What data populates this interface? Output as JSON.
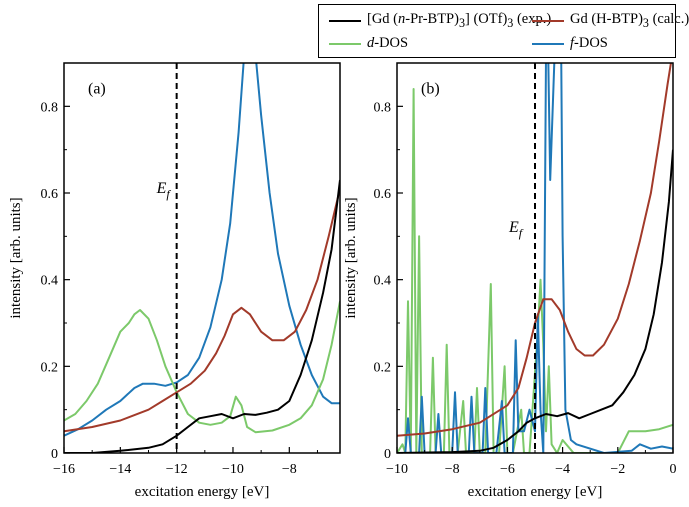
{
  "colors": {
    "exp": "#000000",
    "calc": "#a23a2a",
    "d_dos": "#7cc96a",
    "f_dos": "#1f78b8",
    "ef_line": "#000000"
  },
  "legend": {
    "items": [
      {
        "id": "exp",
        "label_html": "[Gd (<i>n</i>-Pr-BTP)<sub>3</sub>] (OTf)<sub>3</sub> (exp.)"
      },
      {
        "id": "calc",
        "label_html": "Gd (H-BTP)<sub>3</sub> (calc.)"
      },
      {
        "id": "d_dos",
        "label_html": "<i>d</i>-DOS"
      },
      {
        "id": "f_dos",
        "label_html": "<i>f</i>-DOS"
      }
    ]
  },
  "chart_data": [
    {
      "type": "line",
      "panel_label": "(a)",
      "xlabel": "excitation energy [eV]",
      "ylabel": "intensity [arb. units]",
      "xlim": [
        -16,
        -6.2
      ],
      "ylim": [
        0,
        0.9
      ],
      "xticks": [
        -16,
        -14,
        -12,
        -10,
        -8
      ],
      "yticks": [
        0,
        0.2,
        0.4,
        0.6,
        0.8
      ],
      "ef_x": -12,
      "ef_label": "E",
      "ef_sub": "f",
      "series": [
        {
          "id": "f_dos",
          "points": [
            [
              -16,
              0.04
            ],
            [
              -15.5,
              0.055
            ],
            [
              -15,
              0.075
            ],
            [
              -14.5,
              0.1
            ],
            [
              -14,
              0.12
            ],
            [
              -13.5,
              0.15
            ],
            [
              -13.2,
              0.16
            ],
            [
              -12.8,
              0.16
            ],
            [
              -12.4,
              0.155
            ],
            [
              -12,
              0.163
            ],
            [
              -11.6,
              0.18
            ],
            [
              -11.2,
              0.22
            ],
            [
              -10.8,
              0.29
            ],
            [
              -10.4,
              0.4
            ],
            [
              -10.1,
              0.53
            ],
            [
              -9.8,
              0.74
            ],
            [
              -9.6,
              0.92
            ],
            [
              -9.2,
              0.92
            ],
            [
              -9,
              0.78
            ],
            [
              -8.7,
              0.6
            ],
            [
              -8.4,
              0.46
            ],
            [
              -8,
              0.34
            ],
            [
              -7.6,
              0.25
            ],
            [
              -7.2,
              0.18
            ],
            [
              -6.8,
              0.13
            ],
            [
              -6.5,
              0.115
            ],
            [
              -6.2,
              0.115
            ]
          ]
        },
        {
          "id": "d_dos",
          "points": [
            [
              -16,
              0.075
            ],
            [
              -15.6,
              0.09
            ],
            [
              -15.2,
              0.12
            ],
            [
              -14.8,
              0.16
            ],
            [
              -14.4,
              0.22
            ],
            [
              -14,
              0.28
            ],
            [
              -13.7,
              0.3
            ],
            [
              -13.5,
              0.32
            ],
            [
              -13.3,
              0.33
            ],
            [
              -13,
              0.31
            ],
            [
              -12.7,
              0.26
            ],
            [
              -12.4,
              0.2
            ],
            [
              -12,
              0.14
            ],
            [
              -11.6,
              0.09
            ],
            [
              -11.2,
              0.07
            ],
            [
              -10.8,
              0.065
            ],
            [
              -10.4,
              0.07
            ],
            [
              -10.1,
              0.085
            ],
            [
              -9.9,
              0.13
            ],
            [
              -9.7,
              0.11
            ],
            [
              -9.5,
              0.06
            ],
            [
              -9.2,
              0.048
            ],
            [
              -8.6,
              0.052
            ],
            [
              -8,
              0.065
            ],
            [
              -7.6,
              0.08
            ],
            [
              -7.2,
              0.11
            ],
            [
              -6.8,
              0.17
            ],
            [
              -6.5,
              0.25
            ],
            [
              -6.2,
              0.35
            ]
          ]
        },
        {
          "id": "calc",
          "points": [
            [
              -16,
              0.05
            ],
            [
              -15,
              0.06
            ],
            [
              -14,
              0.075
            ],
            [
              -13,
              0.1
            ],
            [
              -12.5,
              0.12
            ],
            [
              -12,
              0.14
            ],
            [
              -11.5,
              0.16
            ],
            [
              -11,
              0.19
            ],
            [
              -10.6,
              0.23
            ],
            [
              -10.3,
              0.27
            ],
            [
              -10,
              0.32
            ],
            [
              -9.7,
              0.335
            ],
            [
              -9.4,
              0.32
            ],
            [
              -9,
              0.28
            ],
            [
              -8.6,
              0.26
            ],
            [
              -8.2,
              0.26
            ],
            [
              -7.8,
              0.28
            ],
            [
              -7.4,
              0.33
            ],
            [
              -7,
              0.4
            ],
            [
              -6.6,
              0.5
            ],
            [
              -6.2,
              0.61
            ]
          ]
        },
        {
          "id": "exp",
          "points": [
            [
              -16,
              0.0
            ],
            [
              -15,
              0.0
            ],
            [
              -14,
              0.005
            ],
            [
              -13,
              0.012
            ],
            [
              -12.5,
              0.02
            ],
            [
              -12,
              0.04
            ],
            [
              -11.6,
              0.06
            ],
            [
              -11.2,
              0.08
            ],
            [
              -10.8,
              0.085
            ],
            [
              -10.4,
              0.09
            ],
            [
              -10,
              0.08
            ],
            [
              -9.6,
              0.09
            ],
            [
              -9.2,
              0.088
            ],
            [
              -8.8,
              0.093
            ],
            [
              -8.4,
              0.1
            ],
            [
              -8,
              0.12
            ],
            [
              -7.6,
              0.18
            ],
            [
              -7.2,
              0.26
            ],
            [
              -6.8,
              0.37
            ],
            [
              -6.5,
              0.47
            ],
            [
              -6.2,
              0.63
            ]
          ]
        }
      ]
    },
    {
      "type": "line",
      "panel_label": "(b)",
      "xlabel": "excitation energy [eV]",
      "ylabel": "intensity [arb. units]",
      "xlim": [
        -10,
        0
      ],
      "ylim": [
        0,
        0.9
      ],
      "xticks": [
        -10,
        -8,
        -6,
        -4,
        -2,
        0
      ],
      "yticks": [
        0,
        0.2,
        0.4,
        0.6,
        0.8
      ],
      "ef_x": -5,
      "ef_label": "E",
      "ef_sub": "f",
      "series": [
        {
          "id": "d_dos",
          "points": [
            [
              -10,
              0.0
            ],
            [
              -9.8,
              0.02
            ],
            [
              -9.7,
              0.0
            ],
            [
              -9.6,
              0.35
            ],
            [
              -9.5,
              0.0
            ],
            [
              -9.4,
              0.84
            ],
            [
              -9.3,
              0.0
            ],
            [
              -9.2,
              0.5
            ],
            [
              -9.1,
              0.0
            ],
            [
              -8.8,
              0.0
            ],
            [
              -8.7,
              0.22
            ],
            [
              -8.6,
              0.0
            ],
            [
              -8.3,
              0.0
            ],
            [
              -8.2,
              0.25
            ],
            [
              -8.1,
              0.0
            ],
            [
              -7.8,
              0.0
            ],
            [
              -7.6,
              0.12
            ],
            [
              -7.5,
              0.0
            ],
            [
              -7.2,
              0.0
            ],
            [
              -7.1,
              0.15
            ],
            [
              -7,
              0.0
            ],
            [
              -6.8,
              0.0
            ],
            [
              -6.6,
              0.39
            ],
            [
              -6.5,
              0.0
            ],
            [
              -6.3,
              0.0
            ],
            [
              -6.1,
              0.2
            ],
            [
              -6,
              0.0
            ],
            [
              -5.8,
              0.0
            ],
            [
              -5.5,
              0.1
            ],
            [
              -5.4,
              0.0
            ],
            [
              -5.2,
              0.0
            ],
            [
              -4.9,
              0.28
            ],
            [
              -4.8,
              0.4
            ],
            [
              -4.7,
              0.25
            ],
            [
              -4.6,
              0.05
            ],
            [
              -4.5,
              0.2
            ],
            [
              -4.4,
              0.02
            ],
            [
              -4.2,
              0.0
            ],
            [
              -4,
              0.03
            ],
            [
              -3.6,
              0.0
            ],
            [
              -2,
              0.0
            ],
            [
              -1.6,
              0.05
            ],
            [
              -1,
              0.05
            ],
            [
              -0.5,
              0.055
            ],
            [
              0,
              0.065
            ]
          ]
        },
        {
          "id": "f_dos",
          "points": [
            [
              -10,
              0.0
            ],
            [
              -9.7,
              0.0
            ],
            [
              -9.6,
              0.08
            ],
            [
              -9.5,
              0.0
            ],
            [
              -9.2,
              0.0
            ],
            [
              -9.1,
              0.13
            ],
            [
              -9,
              0.0
            ],
            [
              -8.6,
              0.0
            ],
            [
              -8.5,
              0.09
            ],
            [
              -8.4,
              0.0
            ],
            [
              -8,
              0.0
            ],
            [
              -7.9,
              0.14
            ],
            [
              -7.8,
              0.0
            ],
            [
              -7.4,
              0.0
            ],
            [
              -7.3,
              0.13
            ],
            [
              -7.2,
              0.0
            ],
            [
              -6.9,
              0.0
            ],
            [
              -6.8,
              0.15
            ],
            [
              -6.7,
              0.0
            ],
            [
              -6.4,
              0.0
            ],
            [
              -6.2,
              0.12
            ],
            [
              -6.1,
              0.0
            ],
            [
              -5.8,
              0.0
            ],
            [
              -5.7,
              0.26
            ],
            [
              -5.6,
              0.05
            ],
            [
              -5.4,
              0.05
            ],
            [
              -5.2,
              0.1
            ],
            [
              -5,
              0.05
            ],
            [
              -4.9,
              0.32
            ],
            [
              -4.8,
              0.1
            ],
            [
              -4.7,
              0.0
            ],
            [
              -4.6,
              0.92
            ],
            [
              -4.52,
              0.92
            ],
            [
              -4.45,
              0.63
            ],
            [
              -4.3,
              0.9
            ],
            [
              -4.2,
              0.92
            ],
            [
              -4.05,
              0.92
            ],
            [
              -4,
              0.5
            ],
            [
              -3.9,
              0.1
            ],
            [
              -3.7,
              0.03
            ],
            [
              -3.5,
              0.02
            ],
            [
              -2.5,
              0.0
            ],
            [
              -1.5,
              0.005
            ],
            [
              -1.2,
              0.02
            ],
            [
              -0.8,
              0.01
            ],
            [
              -0.4,
              0.015
            ],
            [
              0,
              0.01
            ]
          ]
        },
        {
          "id": "calc",
          "points": [
            [
              -10,
              0.04
            ],
            [
              -9,
              0.045
            ],
            [
              -8,
              0.055
            ],
            [
              -7,
              0.07
            ],
            [
              -6,
              0.11
            ],
            [
              -5.6,
              0.15
            ],
            [
              -5.3,
              0.22
            ],
            [
              -5,
              0.3
            ],
            [
              -4.7,
              0.355
            ],
            [
              -4.4,
              0.355
            ],
            [
              -4.1,
              0.33
            ],
            [
              -3.8,
              0.28
            ],
            [
              -3.5,
              0.24
            ],
            [
              -3.2,
              0.225
            ],
            [
              -2.9,
              0.225
            ],
            [
              -2.5,
              0.25
            ],
            [
              -2,
              0.31
            ],
            [
              -1.6,
              0.39
            ],
            [
              -1.2,
              0.49
            ],
            [
              -0.8,
              0.6
            ],
            [
              -0.5,
              0.72
            ],
            [
              -0.2,
              0.85
            ],
            [
              0,
              0.93
            ]
          ]
        },
        {
          "id": "exp",
          "points": [
            [
              -10,
              0.0
            ],
            [
              -8,
              0.002
            ],
            [
              -7,
              0.005
            ],
            [
              -6.5,
              0.012
            ],
            [
              -6,
              0.03
            ],
            [
              -5.6,
              0.05
            ],
            [
              -5.3,
              0.07
            ],
            [
              -5,
              0.08
            ],
            [
              -4.6,
              0.09
            ],
            [
              -4.2,
              0.085
            ],
            [
              -3.8,
              0.092
            ],
            [
              -3.4,
              0.08
            ],
            [
              -3,
              0.09
            ],
            [
              -2.6,
              0.1
            ],
            [
              -2.2,
              0.11
            ],
            [
              -1.8,
              0.14
            ],
            [
              -1.4,
              0.18
            ],
            [
              -1,
              0.24
            ],
            [
              -0.7,
              0.32
            ],
            [
              -0.4,
              0.44
            ],
            [
              -0.15,
              0.58
            ],
            [
              0,
              0.7
            ]
          ]
        }
      ]
    }
  ]
}
